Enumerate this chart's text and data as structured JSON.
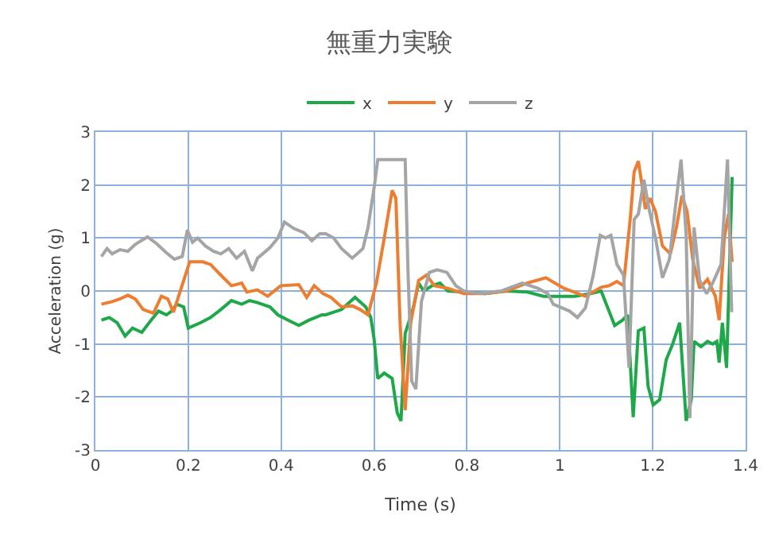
{
  "chart_data": {
    "type": "line",
    "title": "無重力実験",
    "xlabel": "Time (s)",
    "ylabel": "Acceleration (g)",
    "xlim": [
      0,
      1.4
    ],
    "xticks": [
      0,
      0.2,
      0.4,
      0.6,
      0.8,
      1,
      1.2,
      1.4
    ],
    "ylim": [
      -3,
      3
    ],
    "yticks": [
      -3,
      -2,
      -1,
      0,
      1,
      2,
      3
    ],
    "grid": true,
    "legend": "top",
    "marker": "none",
    "line_style": "solid",
    "series": [
      {
        "name": "x",
        "color": "#1fa84a",
        "x": [
          0.013,
          0.03,
          0.047,
          0.064,
          0.08,
          0.1,
          0.12,
          0.136,
          0.153,
          0.164,
          0.175,
          0.19,
          0.2,
          0.226,
          0.248,
          0.27,
          0.293,
          0.315,
          0.332,
          0.349,
          0.376,
          0.393,
          0.415,
          0.438,
          0.46,
          0.488,
          0.496,
          0.53,
          0.559,
          0.582,
          0.593,
          0.6,
          0.608,
          0.622,
          0.639,
          0.65,
          0.658,
          0.667,
          0.685,
          0.696,
          0.707,
          0.725,
          0.742,
          0.759,
          0.793,
          0.839,
          0.885,
          0.93,
          0.965,
          0.975,
          1.032,
          1.066,
          1.089,
          1.118,
          1.135,
          1.146,
          1.158,
          1.169,
          1.181,
          1.19,
          1.201,
          1.215,
          1.229,
          1.243,
          1.258,
          1.272,
          1.283,
          1.289,
          1.304,
          1.318,
          1.329,
          1.338,
          1.343,
          1.35,
          1.359,
          1.371
        ],
        "values": [
          -0.55,
          -0.5,
          -0.6,
          -0.85,
          -0.7,
          -0.78,
          -0.55,
          -0.38,
          -0.45,
          -0.38,
          -0.25,
          -0.3,
          -0.7,
          -0.6,
          -0.5,
          -0.35,
          -0.18,
          -0.25,
          -0.18,
          -0.22,
          -0.3,
          -0.45,
          -0.55,
          -0.65,
          -0.55,
          -0.45,
          -0.45,
          -0.35,
          -0.12,
          -0.3,
          -0.5,
          -0.9,
          -1.65,
          -1.55,
          -1.65,
          -2.3,
          -2.45,
          -0.8,
          -0.3,
          0.15,
          0,
          0.1,
          0.15,
          0,
          -0.02,
          -0.05,
          0,
          -0.02,
          -0.1,
          -0.1,
          -0.1,
          -0.05,
          0,
          -0.65,
          -0.55,
          -0.45,
          -2.38,
          -0.75,
          -0.7,
          -1.8,
          -2.15,
          -2.05,
          -1.3,
          -1.0,
          -0.6,
          -2.45,
          -2.05,
          -0.95,
          -1.05,
          -0.95,
          -1.0,
          -0.95,
          -1.35,
          -0.6,
          -1.45,
          2.15
        ]
      },
      {
        "name": "y",
        "color": "#ed7d31",
        "x": [
          0.013,
          0.036,
          0.053,
          0.07,
          0.086,
          0.103,
          0.125,
          0.142,
          0.156,
          0.168,
          0.181,
          0.192,
          0.203,
          0.231,
          0.248,
          0.27,
          0.293,
          0.315,
          0.326,
          0.349,
          0.371,
          0.399,
          0.438,
          0.455,
          0.471,
          0.49,
          0.507,
          0.53,
          0.553,
          0.57,
          0.587,
          0.605,
          0.622,
          0.639,
          0.647,
          0.656,
          0.667,
          0.679,
          0.696,
          0.713,
          0.73,
          0.759,
          0.793,
          0.839,
          0.885,
          0.93,
          0.97,
          1.009,
          1.055,
          1.089,
          1.106,
          1.123,
          1.137,
          1.152,
          1.16,
          1.169,
          1.177,
          1.184,
          1.194,
          1.206,
          1.221,
          1.238,
          1.251,
          1.263,
          1.274,
          1.286,
          1.301,
          1.318,
          1.335,
          1.343,
          1.354,
          1.363,
          1.371
        ],
        "values": [
          -0.25,
          -0.2,
          -0.15,
          -0.08,
          -0.15,
          -0.35,
          -0.42,
          -0.1,
          -0.15,
          -0.4,
          -0.05,
          0.25,
          0.55,
          0.55,
          0.5,
          0.3,
          0.1,
          0.15,
          -0.02,
          0.02,
          -0.1,
          0.1,
          0.12,
          -0.12,
          0.1,
          -0.05,
          -0.12,
          -0.3,
          -0.28,
          -0.35,
          -0.45,
          0.15,
          1.0,
          1.9,
          1.75,
          -0.6,
          -2.25,
          -0.6,
          0.2,
          0.3,
          0.1,
          0.05,
          -0.05,
          -0.05,
          0,
          0.15,
          0.25,
          0.05,
          -0.1,
          0.07,
          0.1,
          0.18,
          0.1,
          1.4,
          2.25,
          2.45,
          2.0,
          1.55,
          1.75,
          1.5,
          0.85,
          0.7,
          1.2,
          1.8,
          1.5,
          0.6,
          0.05,
          0.22,
          -0.1,
          -0.55,
          1.0,
          1.45,
          0.55
        ]
      },
      {
        "name": "z",
        "color": "#a5a5a5",
        "x": [
          0.013,
          0.025,
          0.036,
          0.053,
          0.07,
          0.086,
          0.112,
          0.131,
          0.153,
          0.17,
          0.187,
          0.198,
          0.209,
          0.22,
          0.237,
          0.254,
          0.27,
          0.287,
          0.304,
          0.321,
          0.338,
          0.349,
          0.36,
          0.376,
          0.393,
          0.407,
          0.427,
          0.449,
          0.466,
          0.483,
          0.496,
          0.513,
          0.53,
          0.553,
          0.576,
          0.587,
          0.601,
          0.608,
          0.667,
          0.673,
          0.681,
          0.69,
          0.702,
          0.719,
          0.736,
          0.757,
          0.776,
          0.793,
          0.828,
          0.873,
          0.919,
          0.953,
          0.974,
          0.986,
          1.021,
          1.038,
          1.055,
          1.072,
          1.087,
          1.098,
          1.11,
          1.123,
          1.137,
          1.149,
          1.16,
          1.169,
          1.181,
          1.192,
          1.206,
          1.221,
          1.236,
          1.249,
          1.261,
          1.272,
          1.28,
          1.289,
          1.301,
          1.316,
          1.329,
          1.347,
          1.361,
          1.37
        ],
        "values": [
          0.65,
          0.8,
          0.7,
          0.78,
          0.75,
          0.88,
          1.02,
          0.9,
          0.72,
          0.6,
          0.65,
          1.15,
          0.92,
          1.0,
          0.85,
          0.75,
          0.7,
          0.8,
          0.62,
          0.75,
          0.38,
          0.62,
          0.7,
          0.82,
          1.0,
          1.3,
          1.18,
          1.1,
          0.95,
          1.08,
          1.08,
          1.0,
          0.8,
          0.62,
          0.8,
          1.2,
          2.0,
          2.48,
          2.48,
          0.4,
          -1.7,
          -1.85,
          -0.2,
          0.35,
          0.4,
          0.35,
          0.1,
          0,
          -0.05,
          0,
          0.15,
          0.05,
          -0.05,
          -0.25,
          -0.38,
          -0.5,
          -0.32,
          0.3,
          1.05,
          1.0,
          1.05,
          0.5,
          0.3,
          -1.45,
          1.35,
          1.45,
          2.1,
          1.55,
          1.0,
          0.25,
          0.6,
          1.6,
          2.48,
          1.05,
          -2.4,
          1.2,
          0.2,
          -0.05,
          0.15,
          0.5,
          2.48,
          -0.4
        ]
      }
    ]
  }
}
